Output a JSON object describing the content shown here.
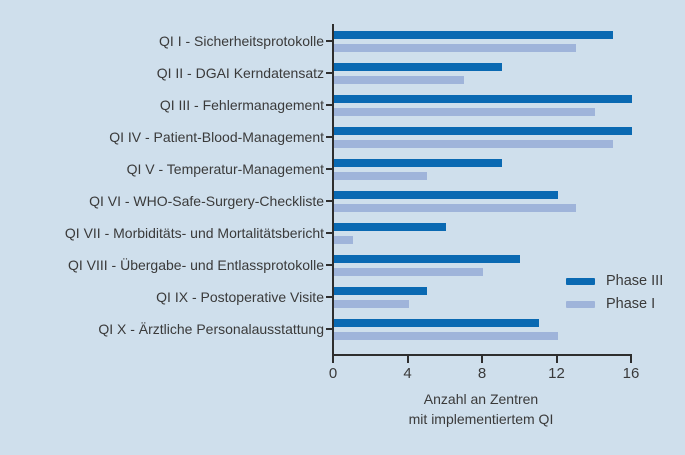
{
  "chart_data": {
    "type": "bar",
    "orientation": "horizontal",
    "title": "",
    "categories": [
      "QI I - Sicherheitsprotokolle",
      "QI II - DGAI Kerndatensatz",
      "QI III - Fehlermanagement",
      "QI IV - Patient-Blood-Management",
      "QI V - Temperatur-Management",
      "QI VI - WHO-Safe-Surgery-Checkliste",
      "QI VII - Morbiditäts- und Mortalitätsbericht",
      "QI VIII - Übergabe- und Entlassprotokolle",
      "QI IX - Postoperative Visite",
      "QI X - Ärztliche Personalausstattung"
    ],
    "series": [
      {
        "name": "Phase III",
        "color": "#0a69b2",
        "values": [
          15,
          9,
          16,
          16,
          9,
          12,
          6,
          10,
          5,
          11
        ]
      },
      {
        "name": "Phase I",
        "color": "#9fb4da",
        "values": [
          13,
          7,
          14,
          15,
          5,
          13,
          1,
          8,
          4,
          12
        ]
      }
    ],
    "xlabel": "Anzahl an Zentren mit implementiertem QI",
    "xlabel_lines": [
      "Anzahl an Zentren",
      "mit implementiertem QI"
    ],
    "xticks": [
      0,
      4,
      8,
      12,
      16
    ],
    "xlim": [
      0,
      16
    ],
    "legend_position": "inside-right-bottom",
    "grid": false,
    "colors": {
      "background": "#cfdfec",
      "axis": "#2e2e2e",
      "text": "#3a3a3a"
    }
  }
}
